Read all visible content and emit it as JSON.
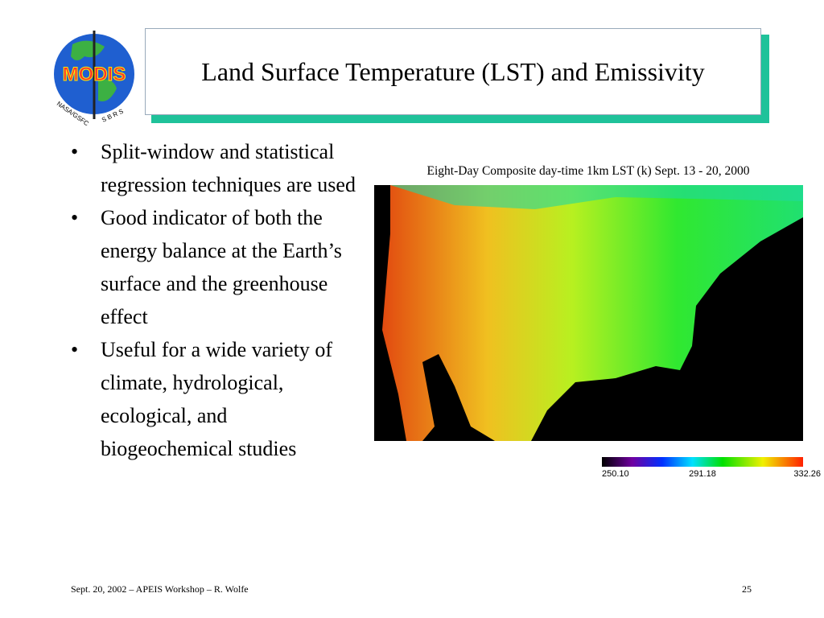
{
  "logo": {
    "name": "MODIS",
    "left_arc": "NASA/GSFC",
    "right_arc": "S B R S"
  },
  "header": {
    "title": "Land Surface Temperature (LST) and Emissivity"
  },
  "bullets": [
    "Split-window and statistical regression techniques are used",
    "Good indicator of both the energy balance at the Earth’s surface and the greenhouse effect",
    "Useful for a wide variety of climate, hydrological, ecological, and biogeochemical studies"
  ],
  "figure": {
    "caption": "Eight-Day Composite day-time 1km LST (k) Sept. 13 - 20, 2000",
    "colorbar_labels": [
      "250.10",
      "291.18",
      "332.26"
    ]
  },
  "footer": {
    "text": "Sept. 20, 2002 – APEIS Workshop – R. Wolfe",
    "page": "25"
  }
}
